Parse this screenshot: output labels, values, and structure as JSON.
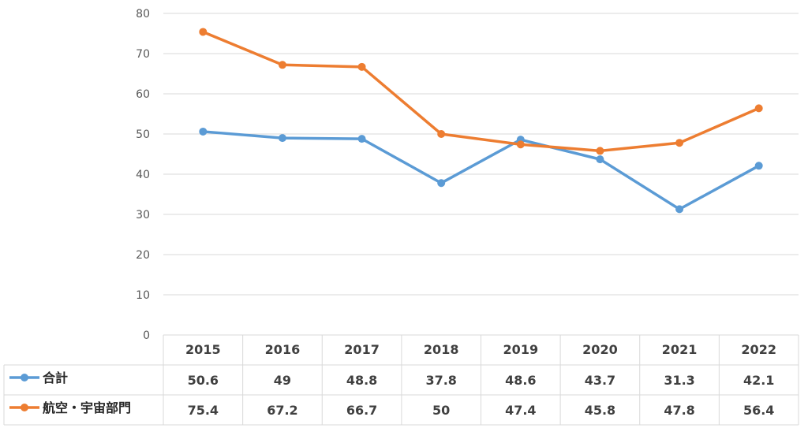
{
  "chart_data": {
    "type": "line",
    "categories": [
      "2015",
      "2016",
      "2017",
      "2018",
      "2019",
      "2020",
      "2021",
      "2022"
    ],
    "series": [
      {
        "name": "合計",
        "color": "#5B9BD5",
        "values": [
          50.6,
          49,
          48.8,
          37.8,
          48.6,
          43.7,
          31.3,
          42.1
        ],
        "labels": [
          "50.6",
          "49",
          "48.8",
          "37.8",
          "48.6",
          "43.7",
          "31.3",
          "42.1"
        ]
      },
      {
        "name": "航空・宇宙部門",
        "color": "#ED7D31",
        "values": [
          75.4,
          67.2,
          66.7,
          50,
          47.4,
          45.8,
          47.8,
          56.4
        ],
        "labels": [
          "75.4",
          "67.2",
          "66.7",
          "50",
          "47.4",
          "45.8",
          "47.8",
          "56.4"
        ]
      }
    ],
    "ylim": [
      0,
      80
    ],
    "yticks": [
      "0",
      "10",
      "20",
      "30",
      "40",
      "50",
      "60",
      "70",
      "80"
    ],
    "grid": true,
    "legend": "data-table"
  }
}
